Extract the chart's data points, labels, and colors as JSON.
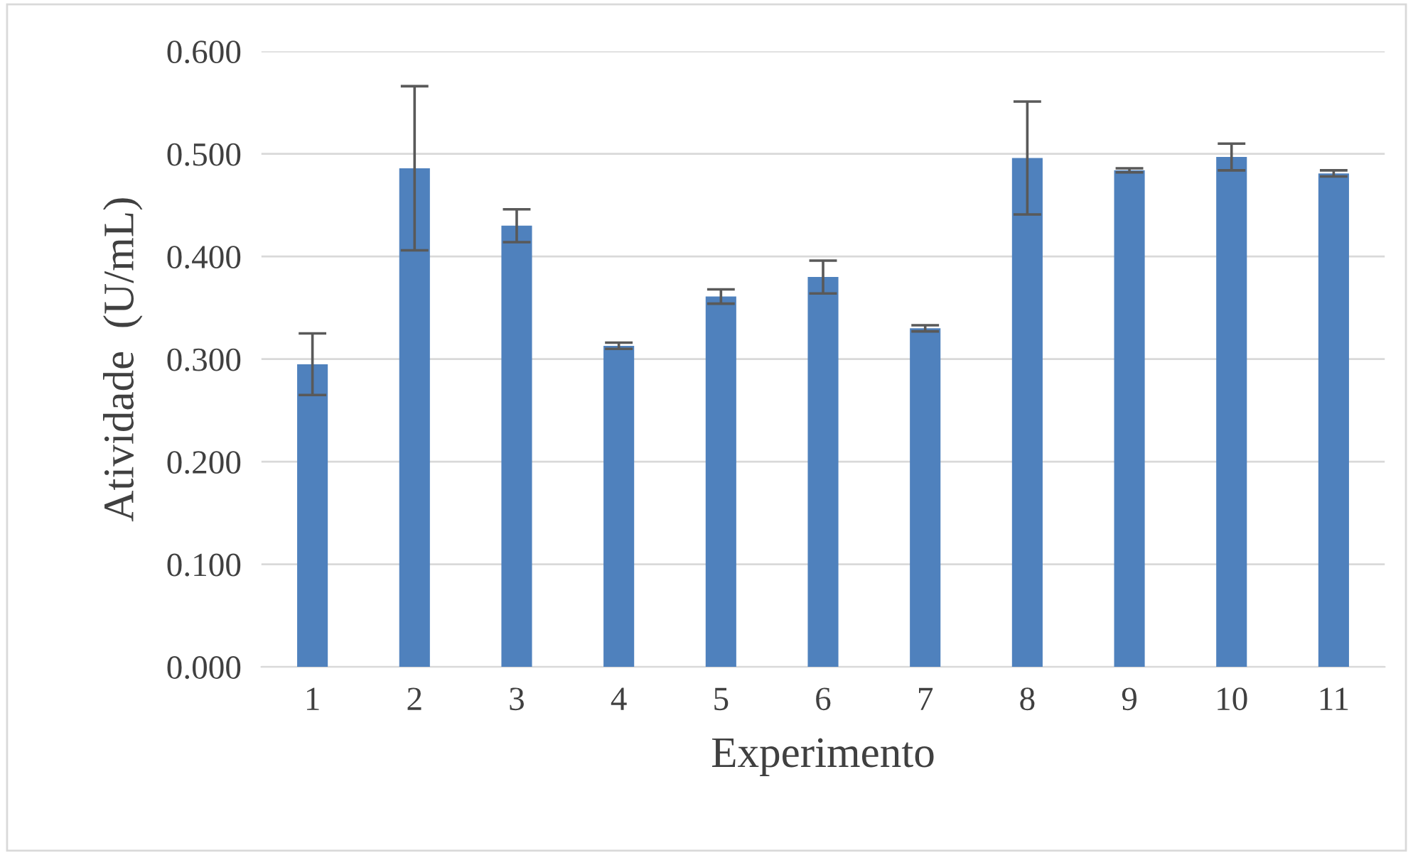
{
  "chart_data": {
    "type": "bar",
    "xlabel": "Experimento",
    "ylabel": "Atividade  (U/mL)",
    "categories": [
      "1",
      "2",
      "3",
      "4",
      "5",
      "6",
      "7",
      "8",
      "9",
      "10",
      "11"
    ],
    "values": [
      0.295,
      0.486,
      0.43,
      0.313,
      0.361,
      0.38,
      0.33,
      0.496,
      0.484,
      0.497,
      0.481
    ],
    "errors": [
      0.03,
      0.08,
      0.016,
      0.003,
      0.007,
      0.016,
      0.003,
      0.055,
      0.002,
      0.013,
      0.003
    ],
    "color": "#4f81bd",
    "ylim": [
      0,
      0.6
    ],
    "yticks": [
      {
        "value": 0,
        "label": "0.000"
      },
      {
        "value": 0.1,
        "label": "0.100"
      },
      {
        "value": 0.2,
        "label": "0.200"
      },
      {
        "value": 0.3,
        "label": "0.300"
      },
      {
        "value": 0.4,
        "label": "0.400"
      },
      {
        "value": 0.5,
        "label": "0.500"
      },
      {
        "value": 0.6,
        "label": "0.600"
      }
    ],
    "grid": "y",
    "legend": false
  }
}
